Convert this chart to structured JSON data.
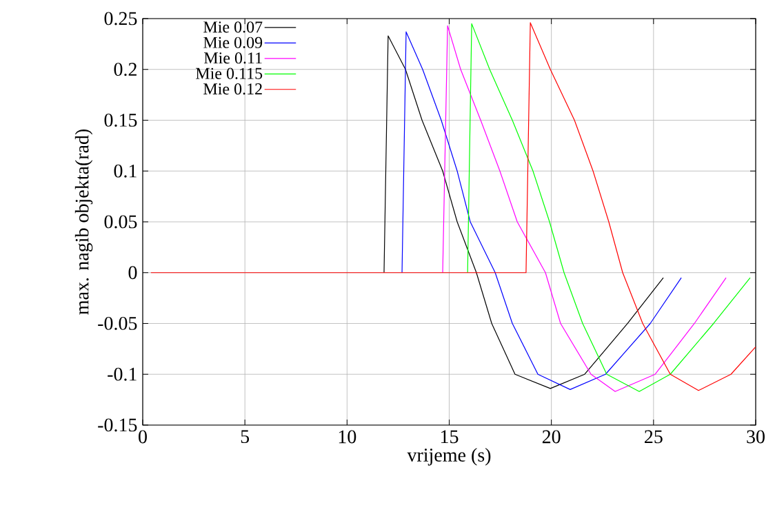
{
  "chart_data": {
    "type": "line",
    "xlabel": "vrijeme (s)",
    "ylabel": "max. nagib objekta(rad)",
    "xlim": [
      0,
      30
    ],
    "ylim": [
      -0.15,
      0.25
    ],
    "xticks": [
      0,
      5,
      10,
      15,
      20,
      25,
      30
    ],
    "yticks": [
      -0.15,
      -0.1,
      -0.05,
      0,
      0.05,
      0.1,
      0.15,
      0.2,
      0.25
    ],
    "grid": true,
    "legend": "top left",
    "line_style": "solid",
    "series": [
      {
        "name": "Mie 0.07",
        "color": "#000000",
        "x": [
          11.81,
          12.01,
          12.86,
          13.67,
          14.68,
          15.39,
          16.33,
          17.08,
          18.22,
          19.95,
          21.63,
          23.73,
          25.48
        ],
        "values": [
          0,
          0.233,
          0.2,
          0.15,
          0.1,
          0.05,
          0,
          -0.05,
          -0.1,
          -0.114,
          -0.1,
          -0.05,
          -0.005
        ]
      },
      {
        "name": "Mie 0.09",
        "color": "#0000ff",
        "x": [
          12.69,
          12.89,
          13.7,
          14.61,
          15.39,
          16.03,
          17.25,
          18.09,
          19.34,
          20.92,
          22.65,
          24.84,
          26.36
        ],
        "values": [
          0,
          0.237,
          0.2,
          0.15,
          0.1,
          0.05,
          0,
          -0.05,
          -0.1,
          -0.115,
          -0.1,
          -0.05,
          -0.005
        ]
      },
      {
        "name": "Mie 0.11",
        "color": "#ff00ff",
        "x": [
          14.68,
          14.92,
          15.56,
          16.54,
          17.48,
          18.33,
          19.71,
          20.45,
          21.94,
          23.12,
          25.08,
          27.0,
          28.55
        ],
        "values": [
          0,
          0.243,
          0.2,
          0.15,
          0.1,
          0.05,
          0,
          -0.05,
          -0.1,
          -0.117,
          -0.1,
          -0.05,
          -0.005
        ]
      },
      {
        "name": "Mie 0.115",
        "color": "#00ff00",
        "x": [
          15.9,
          16.1,
          16.98,
          18.09,
          19.1,
          19.91,
          20.62,
          21.53,
          22.71,
          24.3,
          25.82,
          27.94,
          29.73
        ],
        "values": [
          0,
          0.245,
          0.2,
          0.15,
          0.1,
          0.05,
          0,
          -0.05,
          -0.1,
          -0.117,
          -0.1,
          -0.05,
          -0.005
        ]
      },
      {
        "name": "Mie 0.12",
        "color": "#ff0000",
        "x": [
          0.4,
          18.76,
          18.97,
          19.95,
          21.13,
          22.04,
          22.81,
          23.49,
          24.47,
          25.82,
          27.2,
          28.79,
          30
        ],
        "values": [
          0,
          0,
          0.246,
          0.2,
          0.15,
          0.1,
          0.05,
          0,
          -0.05,
          -0.1,
          -0.116,
          -0.1,
          -0.073
        ]
      }
    ]
  }
}
